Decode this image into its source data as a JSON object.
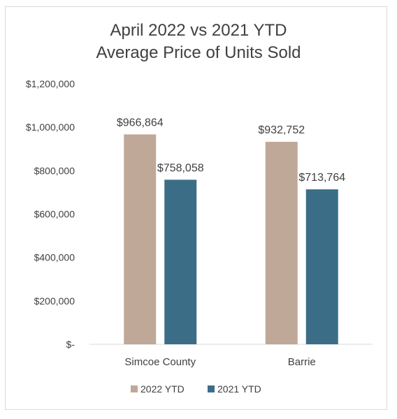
{
  "chart_data": {
    "type": "bar",
    "title_lines": [
      "April 2022 vs 2021 YTD",
      "Average Price of Units Sold"
    ],
    "categories": [
      "Simcoe County",
      "Barrie"
    ],
    "series": [
      {
        "name": "2022 YTD",
        "values": [
          966864,
          932752
        ],
        "labels": [
          "$966,864",
          "$932,752"
        ],
        "color": "#bfa898"
      },
      {
        "name": "2021 YTD",
        "values": [
          758058,
          713764
        ],
        "labels": [
          "$758,058",
          "$713,764"
        ],
        "color": "#3b6e86"
      }
    ],
    "ylim": [
      0,
      1200000
    ],
    "y_ticks": [
      0,
      200000,
      400000,
      600000,
      800000,
      1000000,
      1200000
    ],
    "y_tick_labels": [
      "$-",
      "$200,000",
      "$400,000",
      "$600,000",
      "$800,000",
      "$1,000,000",
      "$1,200,000"
    ],
    "gridlines": false,
    "legend_position": "bottom"
  }
}
